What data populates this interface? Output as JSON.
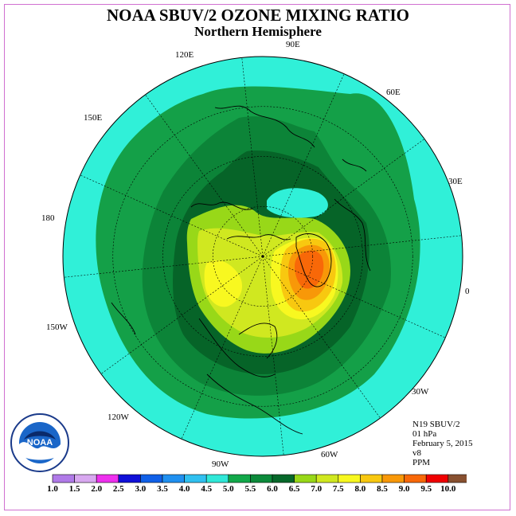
{
  "title": "NOAA SBUV/2 OZONE MIXING RATIO",
  "subtitle": "Northern Hemisphere",
  "longitude_labels": [
    {
      "name": "90E",
      "text": "90E"
    },
    {
      "name": "120E",
      "text": "120E"
    },
    {
      "name": "60E",
      "text": "60E"
    },
    {
      "name": "150E",
      "text": "150E"
    },
    {
      "name": "30E",
      "text": "30E"
    },
    {
      "name": "180",
      "text": "180"
    },
    {
      "name": "0",
      "text": "0"
    },
    {
      "name": "150W",
      "text": "150W"
    },
    {
      "name": "30W",
      "text": "30W"
    },
    {
      "name": "120W",
      "text": "120W"
    },
    {
      "name": "60W",
      "text": "60W"
    },
    {
      "name": "90W",
      "text": "90W"
    }
  ],
  "info": {
    "satellite": "N19 SBUV/2",
    "level": "01 hPa",
    "date": "February 5, 2015",
    "version": "v8",
    "units": "PPM"
  },
  "logo": {
    "text": "NOAA"
  },
  "colorbar": {
    "labels": [
      "1.0",
      "1.5",
      "2.0",
      "2.5",
      "3.0",
      "3.5",
      "4.0",
      "4.5",
      "5.0",
      "5.5",
      "6.0",
      "6.5",
      "7.0",
      "7.5",
      "8.0",
      "8.5",
      "9.0",
      "9.5",
      "10.0"
    ],
    "colors": [
      "#b07ae8",
      "#d8a8f0",
      "#ee30ee",
      "#1010d8",
      "#1060e8",
      "#2090f0",
      "#30c0f0",
      "#30e8d8",
      "#12a84a",
      "#0c8a3a",
      "#06682a",
      "#98d818",
      "#d0e820",
      "#f8f820",
      "#f8c810",
      "#f89808",
      "#f86808",
      "#f00000",
      "#885030"
    ]
  },
  "map_colors": {
    "ocean": "#30f0d8",
    "c50": "#14a048",
    "c55": "#0c8438",
    "c60": "#066428",
    "c65": "#98d818",
    "c70": "#d0e820",
    "c75": "#f8f820",
    "c80": "#f8c810",
    "c85": "#f89808",
    "c90": "#f86808"
  }
}
